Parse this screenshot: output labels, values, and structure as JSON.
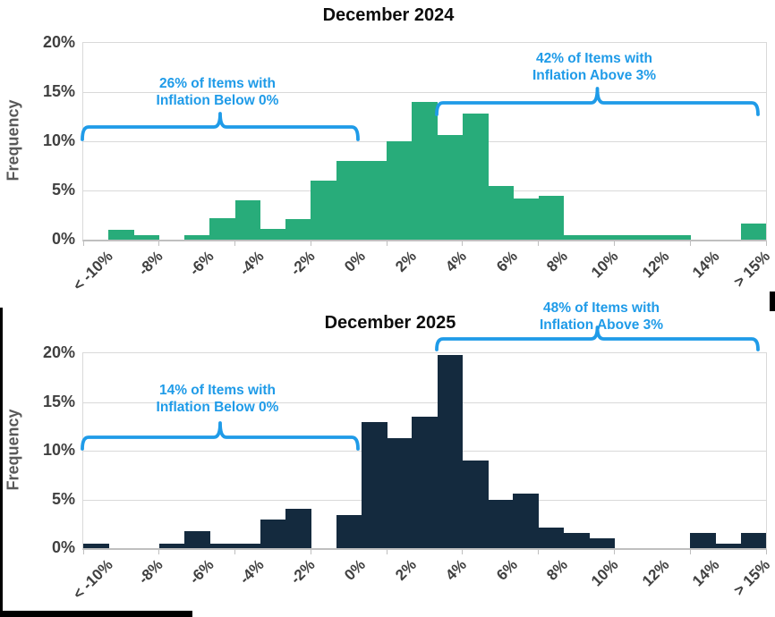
{
  "colors": {
    "bar_green_2024": "#28AC7A",
    "bar_navy_2025": "#142A3E",
    "annotation_blue": "#1F9BE8",
    "gridline": "#D9D9D9",
    "axis_line": "#BFBFBF",
    "axis_text": "#404040",
    "frequency_label_text": "#595959",
    "title_text": "#0D0D0D"
  },
  "chart_data": [
    {
      "type": "bar",
      "subtype": "histogram",
      "title": "December 2024",
      "ylabel": "Frequency",
      "xlabel": "",
      "ylim": [
        0,
        20
      ],
      "grid": true,
      "bar_color": "#28AC7A",
      "y_tick_labels": [
        "20%",
        "15%",
        "10%",
        "5%",
        "0%"
      ],
      "x_tick_labels": [
        "< -10%",
        "-8%",
        "-6%",
        "-4%",
        "-2%",
        "0%",
        "2%",
        "4%",
        "6%",
        "8%",
        "10%",
        "12%",
        "14%",
        "> 15%"
      ],
      "bin_width_pct": 1,
      "categories": [
        "< -10%",
        "-10 to -9%",
        "-9 to -8%",
        "-8 to -7%",
        "-7 to -6%",
        "-6 to -5%",
        "-5 to -4%",
        "-4 to -3%",
        "-3 to -2%",
        "-2 to -1%",
        "-1 to 0%",
        "0 to 1%",
        "1 to 2%",
        "2 to 3%",
        "3 to 4%",
        "4 to 5%",
        "5 to 6%",
        "6 to 7%",
        "7 to 8%",
        "8 to 9%",
        "9 to 10%",
        "10 to 11%",
        "11 to 12%",
        "12 to 13%",
        "13 to 14%",
        "14 to 15%",
        "> 15%"
      ],
      "values": [
        0,
        1.0,
        0.5,
        0,
        0.5,
        2.2,
        4.0,
        1.1,
        2.1,
        6.0,
        8.0,
        8.0,
        10.0,
        14.0,
        10.6,
        12.8,
        5.5,
        4.2,
        4.5,
        0.5,
        0.5,
        0.5,
        0.5,
        0.5,
        0,
        0,
        1.6
      ],
      "annotations": [
        {
          "lines": [
            "26% of Items with",
            "Inflation Below 0%"
          ],
          "value_pct": 26,
          "bracket_span": [
            "< -10%",
            "0%"
          ]
        },
        {
          "lines": [
            "42% of Items with",
            "Inflation Above 3%"
          ],
          "value_pct": 42,
          "bracket_span": [
            "3%",
            "> 15%"
          ]
        }
      ]
    },
    {
      "type": "bar",
      "subtype": "histogram",
      "title": "December 2025",
      "ylabel": "Frequency",
      "xlabel": "",
      "ylim": [
        0,
        20
      ],
      "grid": true,
      "bar_color": "#142A3E",
      "y_tick_labels": [
        "20%",
        "15%",
        "10%",
        "5%",
        "0%"
      ],
      "x_tick_labels": [
        "< -10%",
        "-8%",
        "-6%",
        "-4%",
        "-2%",
        "0%",
        "2%",
        "4%",
        "6%",
        "8%",
        "10%",
        "12%",
        "14%",
        "> 15%"
      ],
      "bin_width_pct": 1,
      "categories": [
        "< -10%",
        "-10 to -9%",
        "-9 to -8%",
        "-8 to -7%",
        "-7 to -6%",
        "-6 to -5%",
        "-5 to -4%",
        "-4 to -3%",
        "-3 to -2%",
        "-2 to -1%",
        "-1 to 0%",
        "0 to 1%",
        "1 to 2%",
        "2 to 3%",
        "3 to 4%",
        "4 to 5%",
        "5 to 6%",
        "6 to 7%",
        "7 to 8%",
        "8 to 9%",
        "9 to 10%",
        "10 to 11%",
        "11 to 12%",
        "12 to 13%",
        "13 to 14%",
        "14 to 15%",
        "> 15%"
      ],
      "values": [
        0.5,
        0,
        0,
        0.5,
        1.7,
        0.5,
        0.5,
        2.9,
        4.0,
        0,
        3.4,
        12.9,
        11.3,
        13.5,
        19.8,
        9.0,
        5.0,
        5.6,
        2.1,
        1.6,
        1.0,
        0,
        0,
        0,
        1.6,
        0.5,
        1.6
      ],
      "annotations": [
        {
          "lines": [
            "14% of Items with",
            "Inflation Below 0%"
          ],
          "value_pct": 14,
          "bracket_span": [
            "< -10%",
            "0%"
          ]
        },
        {
          "lines": [
            "48% of Items with",
            "Inflation Above 3%"
          ],
          "value_pct": 48,
          "bracket_span": [
            "3%",
            "> 15%"
          ]
        }
      ]
    }
  ]
}
